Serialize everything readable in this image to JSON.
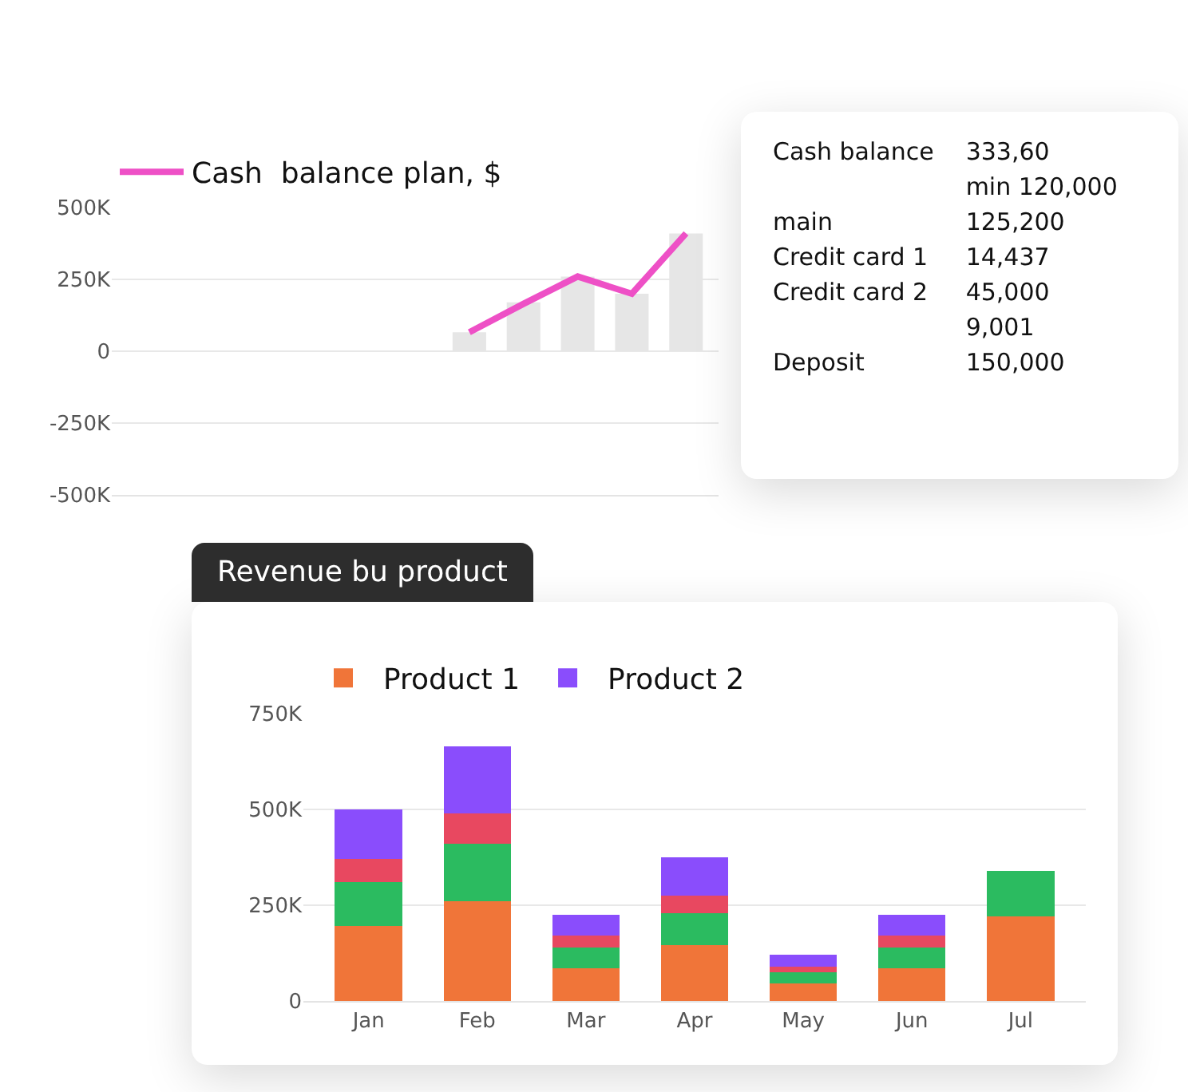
{
  "chart_data": [
    {
      "type": "line",
      "categories": [
        null,
        null,
        null,
        null,
        null,
        null,
        null,
        null,
        null,
        null,
        null
      ],
      "ylim": [
        -500000,
        500000
      ],
      "yticks": [
        {
          "value": 500000,
          "label": "500K"
        },
        {
          "value": 250000,
          "label": "250K"
        },
        {
          "value": 0,
          "label": "0"
        },
        {
          "value": -250000,
          "label": "-250K"
        },
        {
          "value": -500000,
          "label": "-500K"
        }
      ],
      "grid": "y",
      "legend": "top left",
      "tick_labels": "y",
      "marker": "none",
      "line_style": "solid",
      "series": [
        {
          "type": "bar",
          "color": "#e6e6e6",
          "values": [
            null,
            null,
            null,
            null,
            null,
            null,
            66000,
            170000,
            260000,
            200000,
            410000
          ]
        },
        {
          "name": "Cash  balance plan, $",
          "color": "#ee50c6",
          "values": [
            null,
            null,
            null,
            null,
            null,
            null,
            66000,
            165000,
            260000,
            200000,
            410000
          ]
        }
      ]
    },
    {
      "type": "bar",
      "title": "Revenue bu product",
      "stacked": true,
      "categories": [
        "Jan",
        "Feb",
        "Mar",
        "Apr",
        "May",
        "Jun",
        "Jul"
      ],
      "ylim": [
        0,
        750000
      ],
      "yticks": [
        {
          "value": 0,
          "label": "0"
        },
        {
          "value": 250000,
          "label": "250K"
        },
        {
          "value": 500000,
          "label": "500K"
        },
        {
          "value": 750000,
          "label": "750K"
        }
      ],
      "grid": "y",
      "legend": "top left",
      "series": [
        {
          "name": "Product 1",
          "color": "#f07539",
          "values": [
            195000,
            260000,
            85000,
            145000,
            45000,
            85000,
            220000
          ]
        },
        {
          "color": "#2bbb60",
          "values": [
            115000,
            150000,
            55000,
            85000,
            30000,
            55000,
            120000
          ]
        },
        {
          "color": "#e84860",
          "values": [
            60000,
            80000,
            30000,
            45000,
            15000,
            30000,
            null
          ]
        },
        {
          "name": "Product 2",
          "color": "#8a4dfc",
          "values": [
            130000,
            175000,
            55000,
            100000,
            30000,
            55000,
            null
          ]
        }
      ]
    },
    {
      "type": "other",
      "categories": [
        "Cash balance",
        null,
        "main",
        "Credit card 1",
        "Credit card 2",
        null,
        "Deposit"
      ],
      "value_labels": [
        "333,60",
        "min 120,000",
        "125,200",
        "14,437",
        "45,000",
        "9,001",
        "150,000"
      ]
    }
  ]
}
